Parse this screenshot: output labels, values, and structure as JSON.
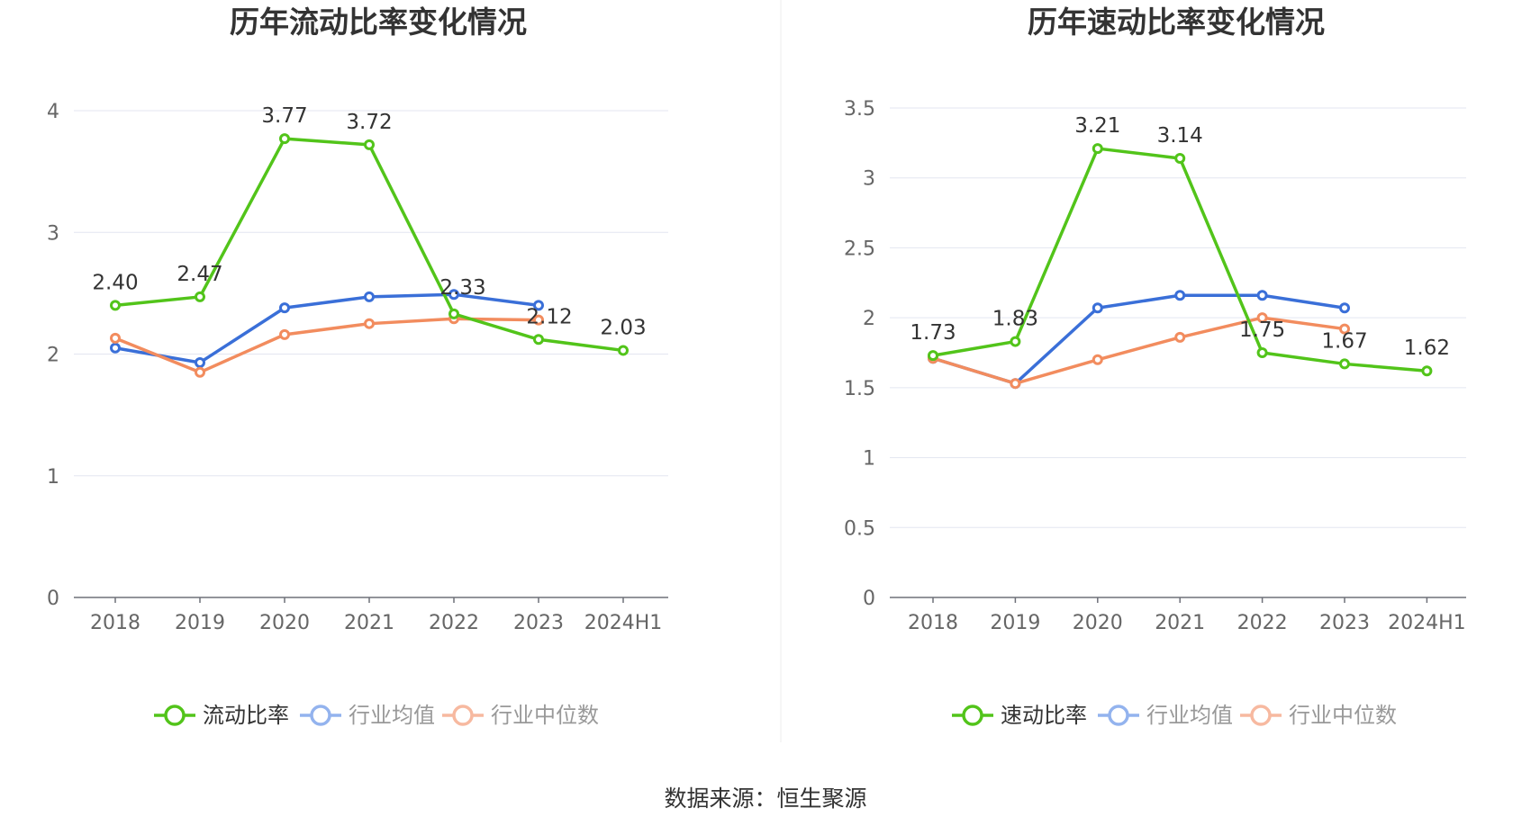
{
  "chart_data": [
    {
      "type": "line",
      "title": "历年流动比率变化情况",
      "categories": [
        "2018",
        "2019",
        "2020",
        "2021",
        "2022",
        "2023",
        "2024H1"
      ],
      "ylim": [
        0,
        4
      ],
      "yticks": [
        "0",
        "1",
        "2",
        "3",
        "4"
      ],
      "ytick_values": [
        0,
        1,
        2,
        3,
        4
      ],
      "grid": true,
      "legend_position": "bottom-center",
      "series": [
        {
          "name": "流动比率",
          "color": "#52c41a",
          "values": [
            2.4,
            2.47,
            3.77,
            3.72,
            2.33,
            2.12,
            2.03
          ],
          "labels": [
            "2.40",
            "2.47",
            "3.77",
            "3.72",
            "2.33",
            "2.12",
            "2.03"
          ]
        },
        {
          "name": "行业均值",
          "color": "#3a6fd8",
          "values": [
            2.05,
            1.93,
            2.38,
            2.47,
            2.49,
            2.4,
            null
          ]
        },
        {
          "name": "行业中位数",
          "color": "#f28c5e",
          "values": [
            2.13,
            1.85,
            2.16,
            2.25,
            2.29,
            2.28,
            null
          ]
        }
      ]
    },
    {
      "type": "line",
      "title": "历年速动比率变化情况",
      "categories": [
        "2018",
        "2019",
        "2020",
        "2021",
        "2022",
        "2023",
        "2024H1"
      ],
      "ylim": [
        0,
        3.5
      ],
      "yticks": [
        "0",
        "0.5",
        "1",
        "1.5",
        "2",
        "2.5",
        "3",
        "3.5"
      ],
      "ytick_values": [
        0,
        0.5,
        1,
        1.5,
        2,
        2.5,
        3,
        3.5
      ],
      "grid": true,
      "legend_position": "bottom-center",
      "series": [
        {
          "name": "速动比率",
          "color": "#52c41a",
          "values": [
            1.73,
            1.83,
            3.21,
            3.14,
            1.75,
            1.67,
            1.62
          ],
          "labels": [
            "1.73",
            "1.83",
            "3.21",
            "3.14",
            "1.75",
            "1.67",
            "1.62"
          ]
        },
        {
          "name": "行业均值",
          "color": "#3a6fd8",
          "values": [
            1.71,
            1.53,
            2.07,
            2.16,
            2.16,
            2.07,
            null
          ]
        },
        {
          "name": "行业中位数",
          "color": "#f28c5e",
          "values": [
            1.71,
            1.53,
            1.7,
            1.86,
            2.0,
            1.92,
            null
          ]
        }
      ]
    }
  ],
  "footer": {
    "source": "数据来源：恒生聚源"
  }
}
